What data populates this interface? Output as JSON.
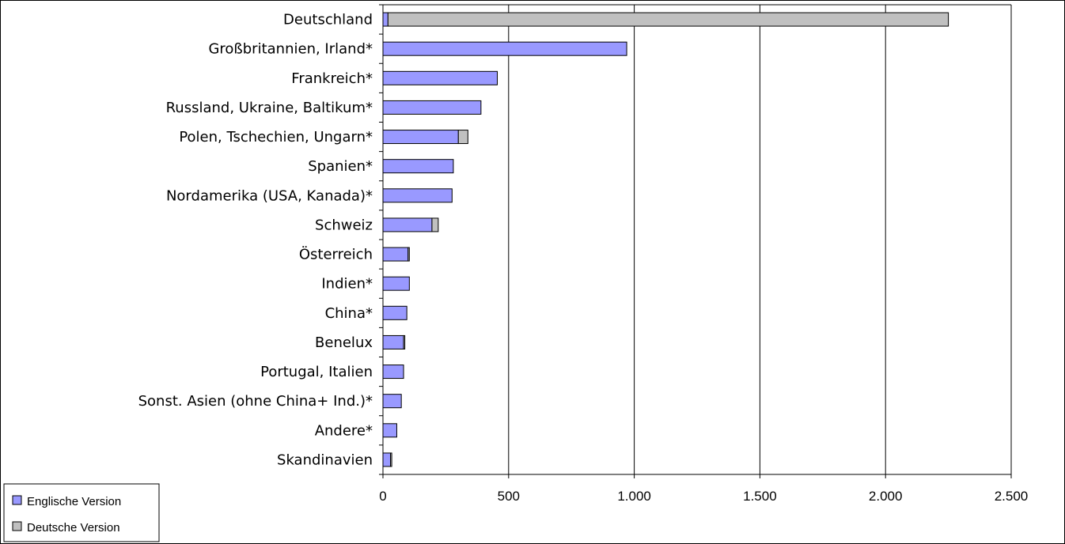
{
  "colors": {
    "englische": "#9999ff",
    "deutsche": "#c0c0c0",
    "outline": "#000000",
    "grid": "#000000"
  },
  "chart_data": {
    "type": "bar",
    "orientation": "horizontal",
    "stacked": true,
    "title": "",
    "xlabel": "",
    "ylabel": "",
    "xlim": [
      0,
      2500
    ],
    "x_ticks": [
      0,
      500,
      1000,
      1500,
      2000,
      2500
    ],
    "x_tick_labels": [
      "0",
      "500",
      "1.000",
      "1.500",
      "2.000",
      "2.500"
    ],
    "grid": "vertical",
    "legend_position": "bottom-left",
    "categories": [
      "Deutschland",
      "Großbritannien, Irland*",
      "Frankreich*",
      "Russland, Ukraine, Baltikum*",
      "Polen, Tschechien, Ungarn*",
      "Spanien*",
      "Nordamerika (USA, Kanada)*",
      "Schweiz",
      "Österreich",
      "Indien*",
      "China*",
      "Benelux",
      "Portugal, Italien",
      "Sonst. Asien (ohne China+ Ind.)*",
      "Andere*",
      "Skandinavien"
    ],
    "series": [
      {
        "name": "Englische Version",
        "values": [
          20,
          970,
          455,
          390,
          300,
          280,
          275,
          195,
          100,
          105,
          95,
          82,
          82,
          73,
          55,
          30
        ]
      },
      {
        "name": "Deutsche Version",
        "values": [
          2230,
          0,
          0,
          0,
          38,
          0,
          0,
          25,
          5,
          0,
          0,
          5,
          0,
          0,
          0,
          5
        ]
      }
    ]
  }
}
